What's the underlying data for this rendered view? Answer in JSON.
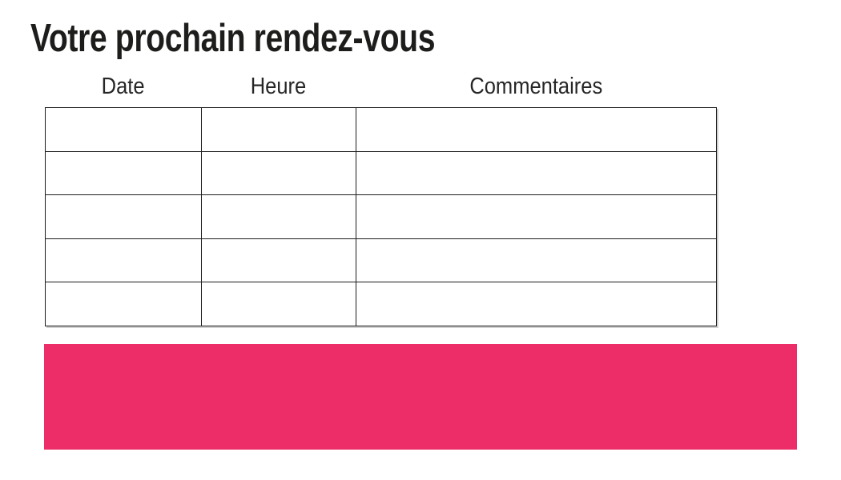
{
  "page": {
    "title": "Votre prochain rendez-vous"
  },
  "table": {
    "headers": [
      "Date",
      "Heure",
      "Commentaires"
    ],
    "rows": [
      [
        "",
        "",
        ""
      ],
      [
        "",
        "",
        ""
      ],
      [
        "",
        "",
        ""
      ],
      [
        "",
        "",
        ""
      ],
      [
        "",
        "",
        ""
      ]
    ]
  },
  "colors": {
    "accent_pink": "#ED2D67",
    "table_border": "#1d1d1b",
    "text": "#1d1d1b"
  }
}
